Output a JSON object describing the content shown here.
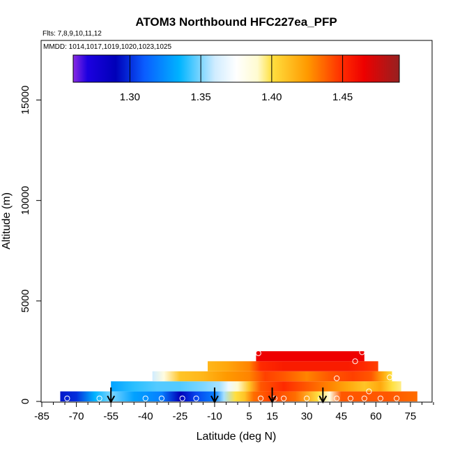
{
  "chart_data": {
    "type": "heatmap",
    "title": "ATOM3 Northbound HFC227ea_PFP",
    "subtitle_flights": "Flts: 7,8,9,10,11,12",
    "subtitle_dates": "MMDD: 1014,1017,1019,1020,1023,1025",
    "xlabel": "Latitude (deg N)",
    "ylabel": "Altitude (m)",
    "xlim": [
      -85,
      85
    ],
    "ylim": [
      0,
      18000
    ],
    "x_ticks": [
      -85,
      -70,
      -55,
      -40,
      -25,
      -10,
      5,
      15,
      30,
      45,
      60,
      75
    ],
    "y_ticks": [
      0,
      5000,
      10000,
      15000
    ],
    "colorbar": {
      "min": 1.26,
      "max": 1.49,
      "ticks": [
        1.3,
        1.35,
        1.4,
        1.45
      ],
      "tick_labels": [
        "1.30",
        "1.35",
        "1.40",
        "1.45"
      ],
      "stops": [
        {
          "v": 1.26,
          "c": "#8a2be2"
        },
        {
          "v": 1.27,
          "c": "#1c00e0"
        },
        {
          "v": 1.29,
          "c": "#0000b8"
        },
        {
          "v": 1.31,
          "c": "#0a5cff"
        },
        {
          "v": 1.335,
          "c": "#00b4ff"
        },
        {
          "v": 1.36,
          "c": "#d0ecff"
        },
        {
          "v": 1.375,
          "c": "#ffffff"
        },
        {
          "v": 1.39,
          "c": "#fffbd0"
        },
        {
          "v": 1.4,
          "c": "#ffe040"
        },
        {
          "v": 1.425,
          "c": "#ff9a00"
        },
        {
          "v": 1.45,
          "c": "#ff2a00"
        },
        {
          "v": 1.465,
          "c": "#ee0000"
        },
        {
          "v": 1.49,
          "c": "#962020"
        }
      ]
    },
    "curtain_bands": [
      {
        "alt_min": 0,
        "alt_max": 500,
        "lat_min": -77,
        "lat_max": 78,
        "keys": [
          [
            -77,
            1.295
          ],
          [
            -70,
            1.3
          ],
          [
            -62,
            1.335
          ],
          [
            -55,
            1.35
          ],
          [
            -45,
            1.33
          ],
          [
            -33,
            1.32
          ],
          [
            -25,
            1.29
          ],
          [
            -18,
            1.305
          ],
          [
            -10,
            1.32
          ],
          [
            -6,
            1.355
          ],
          [
            -1,
            1.4
          ],
          [
            3,
            1.41
          ],
          [
            7,
            1.435
          ],
          [
            15,
            1.445
          ],
          [
            25,
            1.435
          ],
          [
            35,
            1.4
          ],
          [
            40,
            1.385
          ],
          [
            45,
            1.44
          ],
          [
            55,
            1.44
          ],
          [
            65,
            1.44
          ],
          [
            78,
            1.435
          ]
        ]
      },
      {
        "alt_min": 500,
        "alt_max": 1000,
        "lat_min": -55,
        "lat_max": 71,
        "keys": [
          [
            -55,
            1.33
          ],
          [
            -45,
            1.34
          ],
          [
            -35,
            1.345
          ],
          [
            -25,
            1.345
          ],
          [
            -15,
            1.35
          ],
          [
            -8,
            1.355
          ],
          [
            -4,
            1.37
          ],
          [
            0,
            1.39
          ],
          [
            5,
            1.41
          ],
          [
            10,
            1.44
          ],
          [
            20,
            1.45
          ],
          [
            30,
            1.44
          ],
          [
            40,
            1.43
          ],
          [
            48,
            1.42
          ],
          [
            55,
            1.41
          ],
          [
            62,
            1.42
          ],
          [
            67,
            1.4
          ],
          [
            71,
            1.395
          ]
        ]
      },
      {
        "alt_min": 1000,
        "alt_max": 1500,
        "lat_min": -37,
        "lat_max": 67,
        "keys": [
          [
            -37,
            1.36
          ],
          [
            -32,
            1.385
          ],
          [
            -25,
            1.41
          ],
          [
            -15,
            1.415
          ],
          [
            -5,
            1.425
          ],
          [
            5,
            1.43
          ],
          [
            12,
            1.445
          ],
          [
            20,
            1.44
          ],
          [
            30,
            1.43
          ],
          [
            40,
            1.44
          ],
          [
            50,
            1.445
          ],
          [
            58,
            1.44
          ],
          [
            63,
            1.42
          ],
          [
            67,
            1.4
          ]
        ]
      },
      {
        "alt_min": 1500,
        "alt_max": 2000,
        "lat_min": -13,
        "lat_max": 61,
        "keys": [
          [
            -13,
            1.415
          ],
          [
            -5,
            1.42
          ],
          [
            5,
            1.43
          ],
          [
            10,
            1.45
          ],
          [
            20,
            1.455
          ],
          [
            30,
            1.455
          ],
          [
            40,
            1.455
          ],
          [
            48,
            1.455
          ],
          [
            55,
            1.45
          ],
          [
            61,
            1.445
          ]
        ]
      },
      {
        "alt_min": 2000,
        "alt_max": 2500,
        "lat_min": 8,
        "lat_max": 55,
        "keys": [
          [
            8,
            1.465
          ],
          [
            15,
            1.465
          ],
          [
            25,
            1.465
          ],
          [
            35,
            1.465
          ],
          [
            45,
            1.465
          ],
          [
            55,
            1.465
          ]
        ]
      }
    ],
    "sample_points": [
      {
        "lat": -82,
        "alt": 200
      },
      {
        "lat": -74,
        "alt": 150
      },
      {
        "lat": -60,
        "alt": 150
      },
      {
        "lat": -40,
        "alt": 150
      },
      {
        "lat": -33,
        "alt": 150
      },
      {
        "lat": -24,
        "alt": 150
      },
      {
        "lat": -18,
        "alt": 150
      },
      {
        "lat": 10,
        "alt": 150
      },
      {
        "lat": 16,
        "alt": 150
      },
      {
        "lat": 20,
        "alt": 150
      },
      {
        "lat": 30,
        "alt": 150
      },
      {
        "lat": 36,
        "alt": 150
      },
      {
        "lat": 43,
        "alt": 150
      },
      {
        "lat": 49,
        "alt": 150
      },
      {
        "lat": 55,
        "alt": 150
      },
      {
        "lat": 62,
        "alt": 150
      },
      {
        "lat": 69,
        "alt": 150
      },
      {
        "lat": 82,
        "alt": 150
      },
      {
        "lat": 57,
        "alt": 500
      },
      {
        "lat": 66,
        "alt": 1200
      },
      {
        "lat": 43,
        "alt": 1150
      },
      {
        "lat": 51,
        "alt": 2000
      },
      {
        "lat": 9,
        "alt": 2400
      },
      {
        "lat": 54,
        "alt": 2450
      }
    ],
    "arrows_lat": [
      -55,
      -10,
      15,
      37
    ]
  }
}
